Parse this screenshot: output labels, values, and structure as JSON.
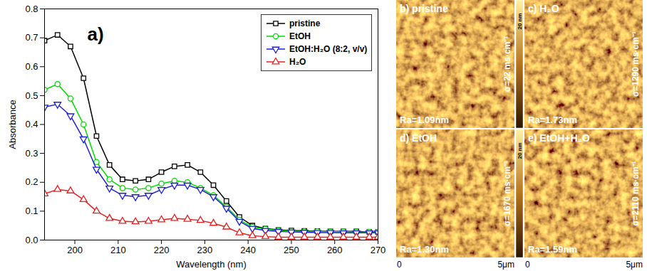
{
  "chart_data": {
    "type": "line",
    "annotation": "a)",
    "xlabel": "Wavelength (nm)",
    "ylabel": "Absorbance",
    "x": [
      193,
      196,
      199,
      202,
      205,
      208,
      211,
      214,
      217,
      220,
      223,
      226,
      229,
      232,
      235,
      238,
      241,
      244,
      247,
      250,
      253,
      256,
      259,
      262,
      265,
      268,
      270
    ],
    "series": [
      {
        "name": "pristine",
        "color": "#000000",
        "marker": "square",
        "values": [
          0.69,
          0.71,
          0.67,
          0.56,
          0.36,
          0.26,
          0.21,
          0.205,
          0.21,
          0.235,
          0.255,
          0.26,
          0.235,
          0.19,
          0.135,
          0.08,
          0.05,
          0.04,
          0.035,
          0.033,
          0.032,
          0.031,
          0.03,
          0.03,
          0.03,
          0.028,
          0.028
        ]
      },
      {
        "name": "EtOH",
        "color": "#00dd00",
        "marker": "circle",
        "values": [
          0.52,
          0.54,
          0.49,
          0.4,
          0.27,
          0.21,
          0.18,
          0.175,
          0.18,
          0.195,
          0.205,
          0.2,
          0.18,
          0.155,
          0.115,
          0.07,
          0.045,
          0.038,
          0.033,
          0.031,
          0.03,
          0.03,
          0.029,
          0.029,
          0.028,
          0.028,
          0.028
        ]
      },
      {
        "name": "EtOH:H₂O (8:2, v/v)",
        "color": "#1f1fd6",
        "marker": "triangle-down",
        "values": [
          0.46,
          0.47,
          0.43,
          0.35,
          0.245,
          0.18,
          0.155,
          0.15,
          0.155,
          0.175,
          0.19,
          0.19,
          0.175,
          0.15,
          0.11,
          0.065,
          0.04,
          0.033,
          0.03,
          0.028,
          0.027,
          0.026,
          0.026,
          0.025,
          0.025,
          0.025,
          0.025
        ]
      },
      {
        "name": "H₂O",
        "color": "#e8201e",
        "marker": "triangle",
        "values": [
          0.16,
          0.175,
          0.17,
          0.14,
          0.1,
          0.075,
          0.065,
          0.063,
          0.065,
          0.07,
          0.075,
          0.072,
          0.068,
          0.058,
          0.045,
          0.025,
          0.015,
          0.012,
          0.01,
          0.01,
          0.01,
          0.01,
          0.01,
          0.01,
          0.01,
          0.01,
          0.01
        ]
      }
    ],
    "xlim": [
      193,
      270
    ],
    "xticks": [
      200,
      210,
      220,
      230,
      240,
      250,
      260,
      270
    ],
    "ylim": [
      0,
      0.8
    ],
    "yticks": [
      {
        "value": 0,
        "label": "0.0"
      },
      {
        "value": 0.1,
        "label": "0.1"
      },
      {
        "value": 0.2,
        "label": "0.2"
      },
      {
        "value": 0.3,
        "label": "0.3"
      },
      {
        "value": 0.4,
        "label": "0.4"
      },
      {
        "value": 0.5,
        "label": "0.5"
      },
      {
        "value": 0.6,
        "label": "0.6"
      },
      {
        "value": 0.7,
        "label": "0.7"
      },
      {
        "value": 0.8,
        "label": "0.8"
      }
    ],
    "legend": "top-right",
    "grid": false
  },
  "afm_images": {
    "colorbar_label": "20 nm",
    "scale_start": "0",
    "scale_end": "5μm",
    "panels": [
      {
        "label": "b) pristine",
        "roughness": "Ra=1.09nm",
        "conductivity": "σ=22 ms·cm⁻¹"
      },
      {
        "label": "c) H₂O",
        "roughness": "Ra=1.73nm",
        "conductivity": "σ=1290 ms·cm⁻¹"
      },
      {
        "label": "d) EtOH",
        "roughness": "Ra=1.30nm",
        "conductivity": "σ=1670 ms·cm⁻¹"
      },
      {
        "label": "e) EtOH+H₂O",
        "roughness": "Ra=1.59nm",
        "conductivity": "σ=2110 ms·cm⁻¹"
      }
    ]
  }
}
